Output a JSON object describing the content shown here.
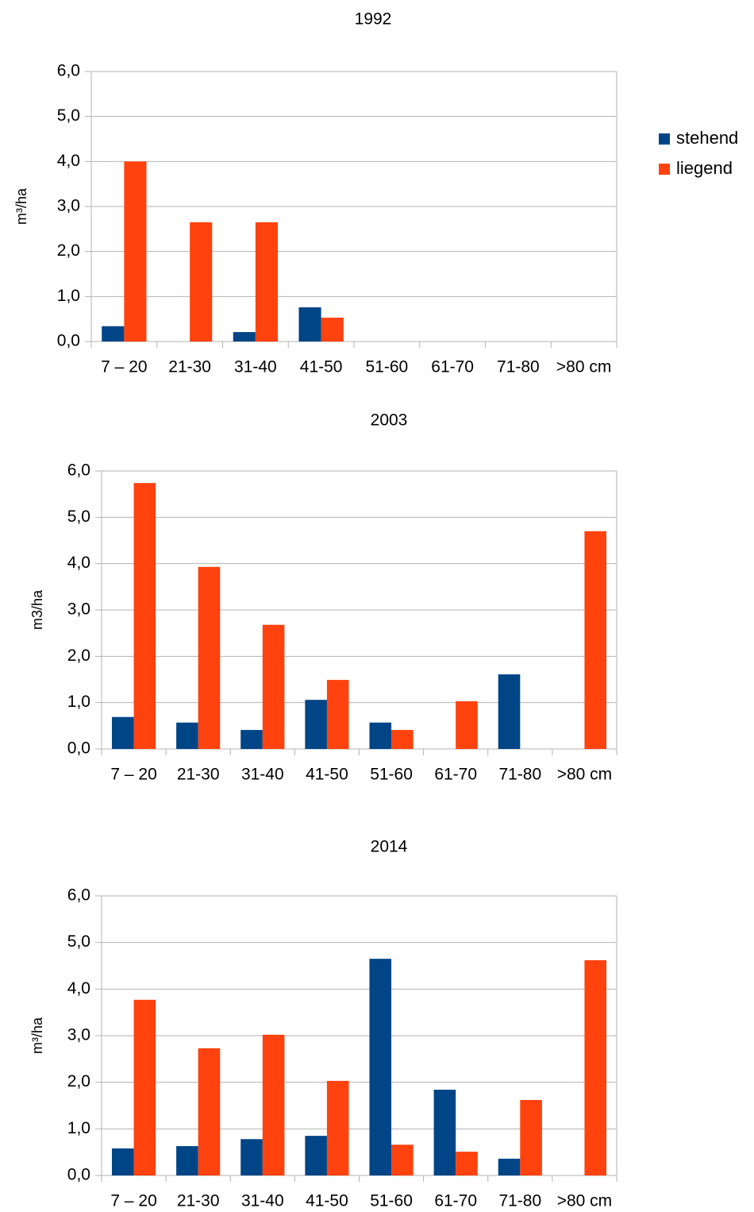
{
  "chart_data": [
    {
      "type": "bar",
      "title": "1992",
      "y_label": "m³/ha",
      "categories": [
        "7 – 20",
        "21-30",
        "31-40",
        "41-50",
        "51-60",
        "61-70",
        "71-80",
        ">80 cm"
      ],
      "series": [
        {
          "name": "stehend",
          "color": "#004586",
          "values": [
            0.34,
            0,
            0.21,
            0.76,
            0,
            0,
            0,
            0
          ]
        },
        {
          "name": "liegend",
          "color": "#ff420e",
          "values": [
            4.0,
            2.65,
            2.65,
            0.53,
            0,
            0,
            0,
            0
          ]
        }
      ],
      "ylim": [
        0,
        6
      ],
      "yticks": [
        {
          "value": 0,
          "label": "0,0"
        },
        {
          "value": 1,
          "label": "1,0"
        },
        {
          "value": 2,
          "label": "2,0"
        },
        {
          "value": 3,
          "label": "3,0"
        },
        {
          "value": 4,
          "label": "4,0"
        },
        {
          "value": 5,
          "label": "5,0"
        },
        {
          "value": 6,
          "label": "6,0"
        }
      ],
      "grid": true,
      "legend": "right"
    },
    {
      "type": "bar",
      "title": "2003",
      "y_label": "m3/ha",
      "categories": [
        "7 – 20",
        "21-30",
        "31-40",
        "41-50",
        "51-60",
        "61-70",
        "71-80",
        ">80 cm"
      ],
      "series": [
        {
          "color": "#004586",
          "values": [
            0.69,
            0.57,
            0.41,
            1.06,
            0.57,
            0,
            1.61,
            0
          ]
        },
        {
          "color": "#ff420e",
          "values": [
            5.74,
            3.93,
            2.68,
            1.49,
            0.41,
            1.03,
            0,
            4.7
          ]
        }
      ],
      "ylim": [
        0,
        6
      ],
      "yticks": [
        {
          "value": 0,
          "label": "0,0"
        },
        {
          "value": 1,
          "label": "1,0"
        },
        {
          "value": 2,
          "label": "2,0"
        },
        {
          "value": 3,
          "label": "3,0"
        },
        {
          "value": 4,
          "label": "4,0"
        },
        {
          "value": 5,
          "label": "5,0"
        },
        {
          "value": 6,
          "label": "6,0"
        }
      ],
      "grid": true
    },
    {
      "type": "bar",
      "title": "2014",
      "y_label": "m³/ha",
      "categories": [
        "7 – 20",
        "21-30",
        "31-40",
        "41-50",
        "51-60",
        "61-70",
        "71-80",
        ">80 cm"
      ],
      "series": [
        {
          "color": "#004586",
          "values": [
            0.58,
            0.63,
            0.78,
            0.85,
            4.65,
            1.84,
            0.36,
            0
          ]
        },
        {
          "color": "#ff420e",
          "values": [
            3.77,
            2.73,
            3.02,
            2.03,
            0.66,
            0.51,
            1.62,
            4.62
          ]
        }
      ],
      "ylim": [
        0,
        6
      ],
      "yticks": [
        {
          "value": 0,
          "label": "0,0"
        },
        {
          "value": 1,
          "label": "1,0"
        },
        {
          "value": 2,
          "label": "2,0"
        },
        {
          "value": 3,
          "label": "3,0"
        },
        {
          "value": 4,
          "label": "4,0"
        },
        {
          "value": 5,
          "label": "5,0"
        },
        {
          "value": 6,
          "label": "6,0"
        }
      ],
      "grid": true
    }
  ]
}
